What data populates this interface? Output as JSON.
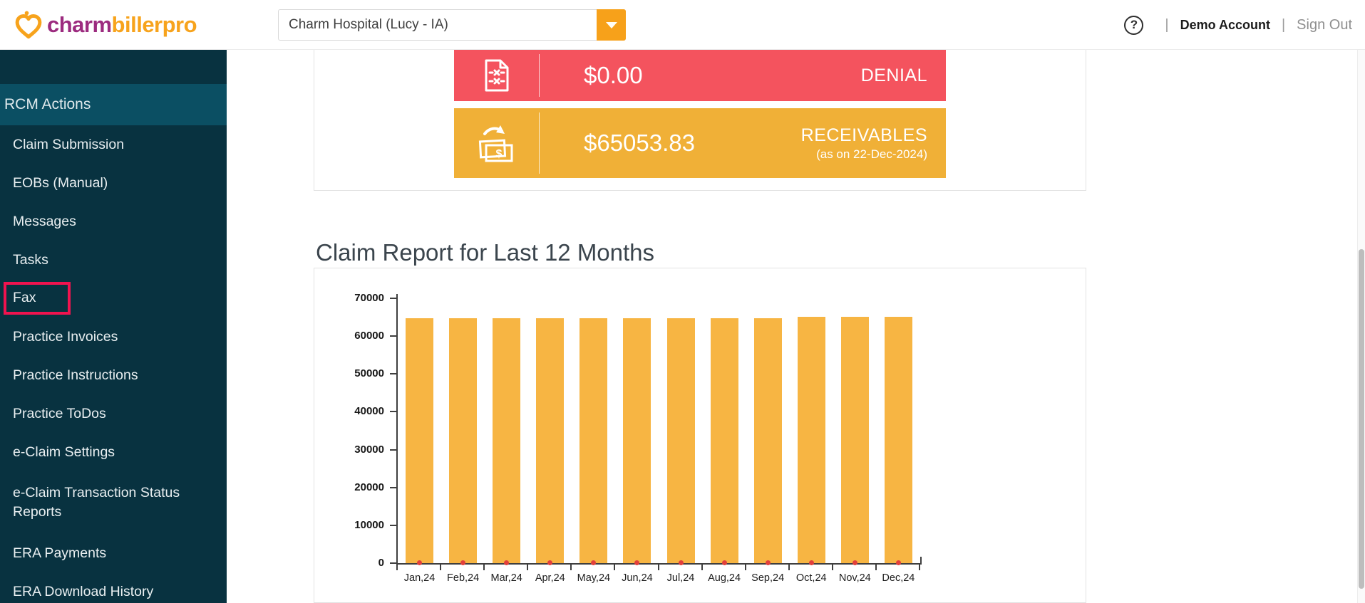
{
  "header": {
    "brand_charm": "charm",
    "brand_biller": "billerpro",
    "practice_selector_value": "Charm Hospital (Lucy - IA)",
    "help_label": "?",
    "separator": "|",
    "account_label": "Demo Account",
    "sign_out_label": "Sign Out"
  },
  "sidebar": {
    "section_label": "RCM Actions",
    "items": [
      {
        "label": "Claim Submission",
        "highlighted": false
      },
      {
        "label": "EOBs (Manual)",
        "highlighted": false
      },
      {
        "label": "Messages",
        "highlighted": false
      },
      {
        "label": "Tasks",
        "highlighted": false
      },
      {
        "label": "Fax",
        "highlighted": true
      },
      {
        "label": "Practice Invoices",
        "highlighted": false
      },
      {
        "label": "Practice Instructions",
        "highlighted": false
      },
      {
        "label": "Practice ToDos",
        "highlighted": false
      },
      {
        "label": "e-Claim Settings",
        "highlighted": false
      },
      {
        "label": "e-Claim Transaction Status Reports",
        "highlighted": false
      },
      {
        "label": "ERA Payments",
        "highlighted": false
      },
      {
        "label": "ERA Download History",
        "highlighted": false
      }
    ]
  },
  "stats": {
    "denial": {
      "value": "$0.00",
      "label": "DENIAL"
    },
    "receivables": {
      "value": "$65053.83",
      "label": "RECEIVABLES",
      "sublabel": "(as on 22-Dec-2024)"
    }
  },
  "main": {
    "chart_title": "Claim Report for Last 12 Months"
  },
  "colors": {
    "sidebar_bg": "#083240",
    "sidebar_active_bg": "#0b4f63",
    "fax_highlight_border": "#f0134f",
    "denial_card": "#f4535e",
    "receivables_card": "#f0b037",
    "bar_fill": "#f7b543",
    "denial_marker": "#e2403c",
    "brand_purple": "#9c2b7f",
    "brand_orange": "#f7a31c"
  },
  "chart_data": {
    "type": "bar",
    "title": "Claim Report for Last 12 Months",
    "categories": [
      "Jan,24",
      "Feb,24",
      "Mar,24",
      "Apr,24",
      "May,24",
      "Jun,24",
      "Jul,24",
      "Aug,24",
      "Sep,24",
      "Oct,24",
      "Nov,24",
      "Dec,24"
    ],
    "series": [
      {
        "name": "Receivables",
        "type": "bar",
        "color": "#f7b543",
        "values": [
          64800,
          64800,
          64800,
          64800,
          64800,
          64800,
          64800,
          64800,
          64800,
          65050,
          65050,
          65050
        ]
      },
      {
        "name": "Denials",
        "type": "point",
        "color": "#e2403c",
        "values": [
          0,
          0,
          0,
          0,
          0,
          0,
          0,
          0,
          0,
          0,
          0,
          0
        ]
      }
    ],
    "xlabel": "",
    "ylabel": "",
    "ylim": [
      0,
      70000
    ],
    "yticks": [
      0,
      10000,
      20000,
      30000,
      40000,
      50000,
      60000,
      70000
    ],
    "grid": false,
    "legend_position": "none"
  }
}
